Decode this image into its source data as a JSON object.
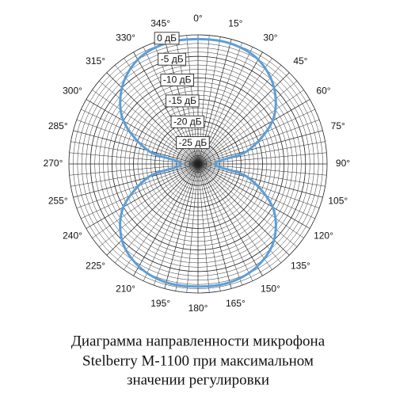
{
  "chart_data": {
    "type": "polar",
    "title": [
      "Диаграмма направленности микрофона",
      "Stelberry M-1100 при максимальном",
      "значении регулировки"
    ],
    "series": [
      {
        "name": "Stelberry M-1100",
        "color": "#5b9fd8",
        "theta": [
          0,
          15,
          30,
          45,
          60,
          75,
          90,
          105,
          120,
          135,
          150,
          165,
          180,
          195,
          210,
          225,
          240,
          255,
          270,
          285,
          300,
          315,
          330,
          345
        ],
        "values": [
          -1,
          -1,
          -2,
          -5,
          -10,
          -18,
          -26,
          -18,
          -10,
          -5,
          -2.5,
          -1.5,
          -1.5,
          -1.5,
          -2.5,
          -5,
          -10,
          -18,
          -26,
          -18,
          -10,
          -5,
          -2,
          -1
        ]
      }
    ],
    "rlim": [
      -30,
      0
    ],
    "rticks": [
      {
        "value": 0,
        "label": "0 дБ"
      },
      {
        "value": -5,
        "label": "-5 дБ"
      },
      {
        "value": -10,
        "label": "-10 дБ"
      },
      {
        "value": -15,
        "label": "-15 дБ"
      },
      {
        "value": -20,
        "label": "-20 дБ"
      },
      {
        "value": -25,
        "label": "-25 дБ"
      }
    ],
    "thetaticks": [
      {
        "value": 0,
        "label": "0°"
      },
      {
        "value": 15,
        "label": "15°"
      },
      {
        "value": 30,
        "label": "30°"
      },
      {
        "value": 45,
        "label": "45°"
      },
      {
        "value": 60,
        "label": "60°"
      },
      {
        "value": 75,
        "label": "75°"
      },
      {
        "value": 90,
        "label": "90°"
      },
      {
        "value": 105,
        "label": "105°"
      },
      {
        "value": 120,
        "label": "120°"
      },
      {
        "value": 135,
        "label": "135°"
      },
      {
        "value": 150,
        "label": "150°"
      },
      {
        "value": 165,
        "label": "165°"
      },
      {
        "value": 180,
        "label": "180°"
      },
      {
        "value": 195,
        "label": "195°"
      },
      {
        "value": 210,
        "label": "210°"
      },
      {
        "value": 225,
        "label": "225°"
      },
      {
        "value": 240,
        "label": "240°"
      },
      {
        "value": 255,
        "label": "255°"
      },
      {
        "value": 270,
        "label": "270°"
      },
      {
        "value": 285,
        "label": "285°"
      },
      {
        "value": 300,
        "label": "300°"
      },
      {
        "value": 315,
        "label": "315°"
      },
      {
        "value": 330,
        "label": "330°"
      },
      {
        "value": 345,
        "label": "345°"
      }
    ],
    "grid": true
  }
}
